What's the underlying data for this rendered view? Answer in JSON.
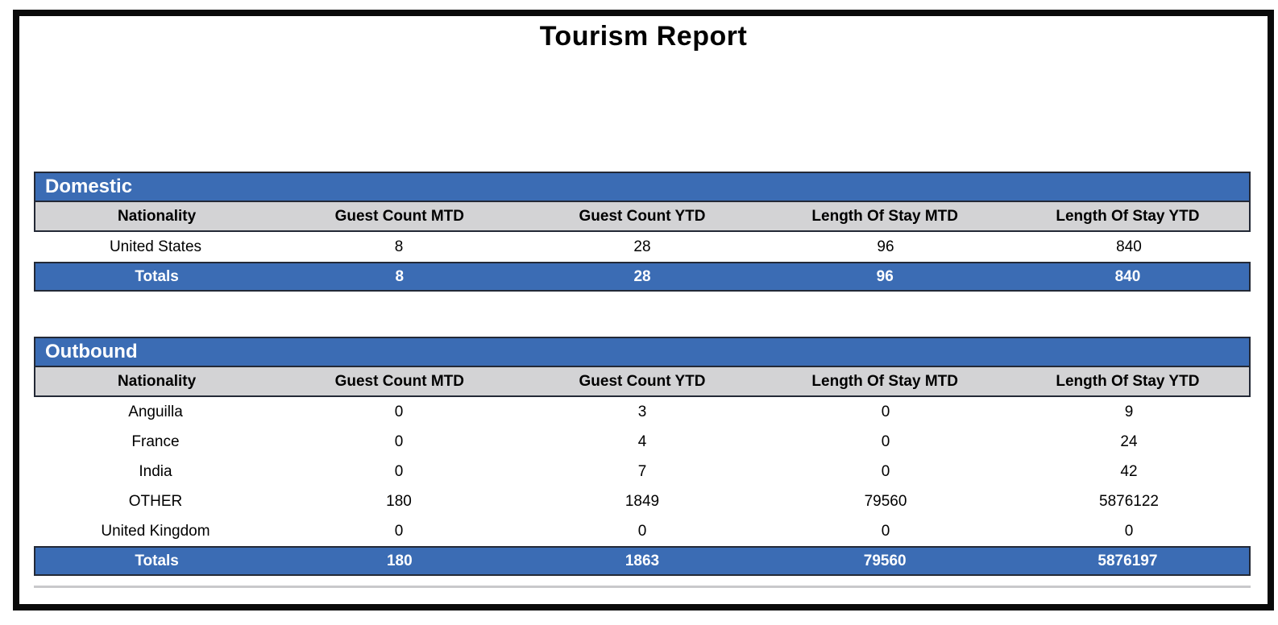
{
  "report": {
    "title": "Tourism Report"
  },
  "columns": [
    "Nationality",
    "Guest Count MTD",
    "Guest Count YTD",
    "Length Of Stay MTD",
    "Length Of Stay YTD"
  ],
  "tables": [
    {
      "section": "Domestic",
      "rows": [
        [
          "United States",
          "8",
          "28",
          "96",
          "840"
        ]
      ],
      "totals": [
        "Totals",
        "8",
        "28",
        "96",
        "840"
      ]
    },
    {
      "section": "Outbound",
      "rows": [
        [
          "Anguilla",
          "0",
          "3",
          "0",
          "9"
        ],
        [
          "France",
          "0",
          "4",
          "0",
          "24"
        ],
        [
          "India",
          "0",
          "7",
          "0",
          "42"
        ],
        [
          "OTHER",
          "180",
          "1849",
          "79560",
          "5876122"
        ],
        [
          "United Kingdom",
          "0",
          "0",
          "0",
          "0"
        ]
      ],
      "totals": [
        "Totals",
        "180",
        "1863",
        "79560",
        "5876197"
      ]
    }
  ],
  "colors": {
    "section_blue": "#3B6CB4",
    "header_gray": "#D3D3D5",
    "row_border": "#232936",
    "frame_black": "#0A0A0A",
    "title_text": "#000000",
    "totals_text": "#FFFFFF"
  }
}
